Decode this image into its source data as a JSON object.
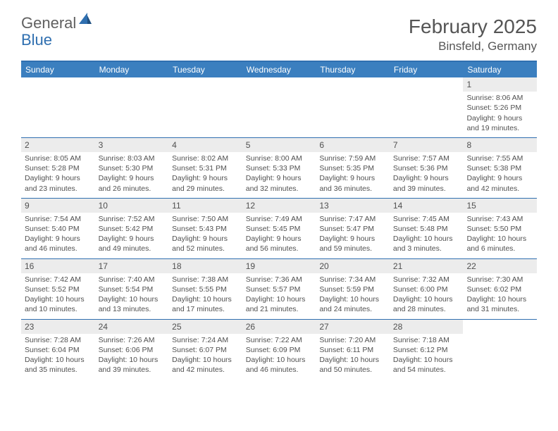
{
  "brand": {
    "part1": "General",
    "part2": "Blue"
  },
  "title": "February 2025",
  "location": "Binsfeld, Germany",
  "colors": {
    "accent": "#3b7fbf",
    "border": "#2f6fb0",
    "daynum_bg": "#ececec",
    "text": "#505050",
    "background": "#ffffff"
  },
  "day_headers": [
    "Sunday",
    "Monday",
    "Tuesday",
    "Wednesday",
    "Thursday",
    "Friday",
    "Saturday"
  ],
  "weeks": [
    [
      {
        "empty": true
      },
      {
        "empty": true
      },
      {
        "empty": true
      },
      {
        "empty": true
      },
      {
        "empty": true
      },
      {
        "empty": true
      },
      {
        "num": "1",
        "sunrise": "Sunrise: 8:06 AM",
        "sunset": "Sunset: 5:26 PM",
        "daylight": "Daylight: 9 hours and 19 minutes."
      }
    ],
    [
      {
        "num": "2",
        "sunrise": "Sunrise: 8:05 AM",
        "sunset": "Sunset: 5:28 PM",
        "daylight": "Daylight: 9 hours and 23 minutes."
      },
      {
        "num": "3",
        "sunrise": "Sunrise: 8:03 AM",
        "sunset": "Sunset: 5:30 PM",
        "daylight": "Daylight: 9 hours and 26 minutes."
      },
      {
        "num": "4",
        "sunrise": "Sunrise: 8:02 AM",
        "sunset": "Sunset: 5:31 PM",
        "daylight": "Daylight: 9 hours and 29 minutes."
      },
      {
        "num": "5",
        "sunrise": "Sunrise: 8:00 AM",
        "sunset": "Sunset: 5:33 PM",
        "daylight": "Daylight: 9 hours and 32 minutes."
      },
      {
        "num": "6",
        "sunrise": "Sunrise: 7:59 AM",
        "sunset": "Sunset: 5:35 PM",
        "daylight": "Daylight: 9 hours and 36 minutes."
      },
      {
        "num": "7",
        "sunrise": "Sunrise: 7:57 AM",
        "sunset": "Sunset: 5:36 PM",
        "daylight": "Daylight: 9 hours and 39 minutes."
      },
      {
        "num": "8",
        "sunrise": "Sunrise: 7:55 AM",
        "sunset": "Sunset: 5:38 PM",
        "daylight": "Daylight: 9 hours and 42 minutes."
      }
    ],
    [
      {
        "num": "9",
        "sunrise": "Sunrise: 7:54 AM",
        "sunset": "Sunset: 5:40 PM",
        "daylight": "Daylight: 9 hours and 46 minutes."
      },
      {
        "num": "10",
        "sunrise": "Sunrise: 7:52 AM",
        "sunset": "Sunset: 5:42 PM",
        "daylight": "Daylight: 9 hours and 49 minutes."
      },
      {
        "num": "11",
        "sunrise": "Sunrise: 7:50 AM",
        "sunset": "Sunset: 5:43 PM",
        "daylight": "Daylight: 9 hours and 52 minutes."
      },
      {
        "num": "12",
        "sunrise": "Sunrise: 7:49 AM",
        "sunset": "Sunset: 5:45 PM",
        "daylight": "Daylight: 9 hours and 56 minutes."
      },
      {
        "num": "13",
        "sunrise": "Sunrise: 7:47 AM",
        "sunset": "Sunset: 5:47 PM",
        "daylight": "Daylight: 9 hours and 59 minutes."
      },
      {
        "num": "14",
        "sunrise": "Sunrise: 7:45 AM",
        "sunset": "Sunset: 5:48 PM",
        "daylight": "Daylight: 10 hours and 3 minutes."
      },
      {
        "num": "15",
        "sunrise": "Sunrise: 7:43 AM",
        "sunset": "Sunset: 5:50 PM",
        "daylight": "Daylight: 10 hours and 6 minutes."
      }
    ],
    [
      {
        "num": "16",
        "sunrise": "Sunrise: 7:42 AM",
        "sunset": "Sunset: 5:52 PM",
        "daylight": "Daylight: 10 hours and 10 minutes."
      },
      {
        "num": "17",
        "sunrise": "Sunrise: 7:40 AM",
        "sunset": "Sunset: 5:54 PM",
        "daylight": "Daylight: 10 hours and 13 minutes."
      },
      {
        "num": "18",
        "sunrise": "Sunrise: 7:38 AM",
        "sunset": "Sunset: 5:55 PM",
        "daylight": "Daylight: 10 hours and 17 minutes."
      },
      {
        "num": "19",
        "sunrise": "Sunrise: 7:36 AM",
        "sunset": "Sunset: 5:57 PM",
        "daylight": "Daylight: 10 hours and 21 minutes."
      },
      {
        "num": "20",
        "sunrise": "Sunrise: 7:34 AM",
        "sunset": "Sunset: 5:59 PM",
        "daylight": "Daylight: 10 hours and 24 minutes."
      },
      {
        "num": "21",
        "sunrise": "Sunrise: 7:32 AM",
        "sunset": "Sunset: 6:00 PM",
        "daylight": "Daylight: 10 hours and 28 minutes."
      },
      {
        "num": "22",
        "sunrise": "Sunrise: 7:30 AM",
        "sunset": "Sunset: 6:02 PM",
        "daylight": "Daylight: 10 hours and 31 minutes."
      }
    ],
    [
      {
        "num": "23",
        "sunrise": "Sunrise: 7:28 AM",
        "sunset": "Sunset: 6:04 PM",
        "daylight": "Daylight: 10 hours and 35 minutes."
      },
      {
        "num": "24",
        "sunrise": "Sunrise: 7:26 AM",
        "sunset": "Sunset: 6:06 PM",
        "daylight": "Daylight: 10 hours and 39 minutes."
      },
      {
        "num": "25",
        "sunrise": "Sunrise: 7:24 AM",
        "sunset": "Sunset: 6:07 PM",
        "daylight": "Daylight: 10 hours and 42 minutes."
      },
      {
        "num": "26",
        "sunrise": "Sunrise: 7:22 AM",
        "sunset": "Sunset: 6:09 PM",
        "daylight": "Daylight: 10 hours and 46 minutes."
      },
      {
        "num": "27",
        "sunrise": "Sunrise: 7:20 AM",
        "sunset": "Sunset: 6:11 PM",
        "daylight": "Daylight: 10 hours and 50 minutes."
      },
      {
        "num": "28",
        "sunrise": "Sunrise: 7:18 AM",
        "sunset": "Sunset: 6:12 PM",
        "daylight": "Daylight: 10 hours and 54 minutes."
      },
      {
        "empty": true
      }
    ]
  ]
}
